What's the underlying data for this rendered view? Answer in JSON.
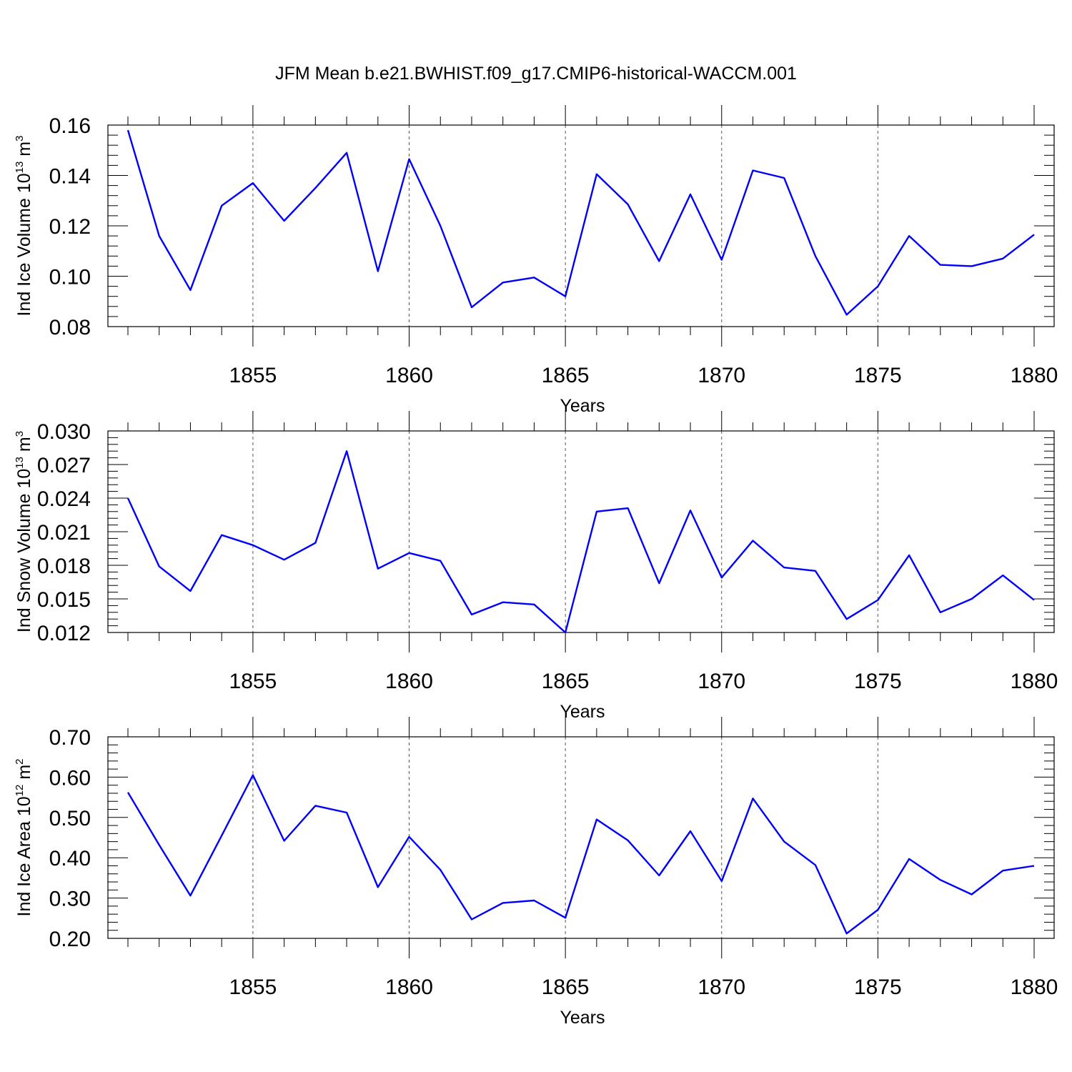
{
  "title": "JFM Mean b.e21.BWHIST.f09_g17.CMIP6-historical-WACCM.001",
  "colors": {
    "line": "#0000ff",
    "axis": "#000000",
    "grid": "#555555"
  },
  "chart_data": [
    {
      "type": "line",
      "xlabel": "Years",
      "ylabel": {
        "main": "Ind Ice Volume 10",
        "exp": "13",
        "unit": " m",
        "unit_exp": "3"
      },
      "xlim": [
        1851,
        1880
      ],
      "ylim": [
        0.08,
        0.16
      ],
      "xticks": [
        1855,
        1860,
        1865,
        1870,
        1875,
        1880
      ],
      "yticks": [
        0.08,
        0.1,
        0.12,
        0.14,
        0.16
      ],
      "ytick_labels": [
        "0.08",
        "0.10",
        "0.12",
        "0.14",
        "0.16"
      ],
      "grid": "dashed vertical at major x ticks",
      "x": [
        1851,
        1852,
        1853,
        1854,
        1855,
        1856,
        1857,
        1858,
        1859,
        1860,
        1861,
        1862,
        1863,
        1864,
        1865,
        1866,
        1867,
        1868,
        1869,
        1870,
        1871,
        1872,
        1873,
        1874,
        1875,
        1876,
        1877,
        1878,
        1879,
        1880
      ],
      "values": [
        0.158,
        0.116,
        0.0945,
        0.128,
        0.137,
        0.122,
        0.135,
        0.149,
        0.102,
        0.1465,
        0.12,
        0.0877,
        0.0975,
        0.0995,
        0.092,
        0.1405,
        0.1285,
        0.106,
        0.1325,
        0.1065,
        0.142,
        0.139,
        0.108,
        0.0847,
        0.096,
        0.116,
        0.1045,
        0.104,
        0.107,
        0.1165
      ]
    },
    {
      "type": "line",
      "xlabel": "Years",
      "ylabel": {
        "main": "Ind Snow Volume 10",
        "exp": "13",
        "unit": " m",
        "unit_exp": "3"
      },
      "xlim": [
        1851,
        1880
      ],
      "ylim": [
        0.012,
        0.03
      ],
      "xticks": [
        1855,
        1860,
        1865,
        1870,
        1875,
        1880
      ],
      "yticks": [
        0.012,
        0.015,
        0.018,
        0.021,
        0.024,
        0.027,
        0.03
      ],
      "ytick_labels": [
        "0.012",
        "0.015",
        "0.018",
        "0.021",
        "0.024",
        "0.027",
        "0.030"
      ],
      "grid": "dashed vertical at major x ticks",
      "x": [
        1851,
        1852,
        1853,
        1854,
        1855,
        1856,
        1857,
        1858,
        1859,
        1860,
        1861,
        1862,
        1863,
        1864,
        1865,
        1866,
        1867,
        1868,
        1869,
        1870,
        1871,
        1872,
        1873,
        1874,
        1875,
        1876,
        1877,
        1878,
        1879,
        1880
      ],
      "values": [
        0.024,
        0.0179,
        0.0157,
        0.0207,
        0.0198,
        0.0185,
        0.02,
        0.0282,
        0.0177,
        0.0191,
        0.0184,
        0.0136,
        0.0147,
        0.0145,
        0.012,
        0.0228,
        0.0231,
        0.0164,
        0.0229,
        0.0169,
        0.0202,
        0.0178,
        0.0175,
        0.0132,
        0.0149,
        0.0189,
        0.0138,
        0.015,
        0.0171,
        0.0149
      ]
    },
    {
      "type": "line",
      "xlabel": "Years",
      "ylabel": {
        "main": "Ind Ice Area 10",
        "exp": "12",
        "unit": " m",
        "unit_exp": "2"
      },
      "xlim": [
        1851,
        1880
      ],
      "ylim": [
        0.2,
        0.7
      ],
      "xticks": [
        1855,
        1860,
        1865,
        1870,
        1875,
        1880
      ],
      "yticks": [
        0.2,
        0.3,
        0.4,
        0.5,
        0.6,
        0.7
      ],
      "ytick_labels": [
        "0.20",
        "0.30",
        "0.40",
        "0.50",
        "0.60",
        "0.70"
      ],
      "grid": "dashed vertical at major x ticks",
      "x": [
        1851,
        1852,
        1853,
        1854,
        1855,
        1856,
        1857,
        1858,
        1859,
        1860,
        1861,
        1862,
        1863,
        1864,
        1865,
        1866,
        1867,
        1868,
        1869,
        1870,
        1871,
        1872,
        1873,
        1874,
        1875,
        1876,
        1877,
        1878,
        1879,
        1880
      ],
      "values": [
        0.562,
        0.432,
        0.306,
        0.455,
        0.605,
        0.442,
        0.529,
        0.512,
        0.327,
        0.452,
        0.37,
        0.247,
        0.288,
        0.294,
        0.251,
        0.495,
        0.443,
        0.356,
        0.466,
        0.342,
        0.547,
        0.44,
        0.382,
        0.212,
        0.271,
        0.397,
        0.345,
        0.309,
        0.368,
        0.38
      ]
    }
  ]
}
